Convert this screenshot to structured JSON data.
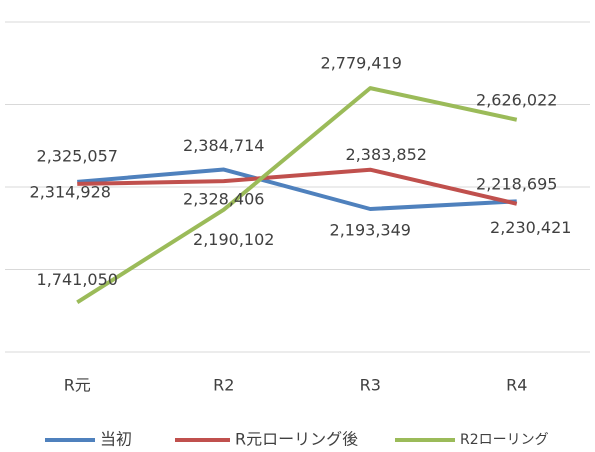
{
  "chart_data": {
    "type": "line",
    "categories": [
      "R元",
      "R2",
      "R3",
      "R4"
    ],
    "series": [
      {
        "name": "当初",
        "color": "#4f81bd",
        "values": [
          2325057,
          2384714,
          2193349,
          2230421
        ],
        "value_labels": [
          "2,325,057",
          "2,384,714",
          "2,193,349",
          "2,230,421"
        ]
      },
      {
        "name": "R元ローリング後",
        "color": "#c0504d",
        "values": [
          2314928,
          2328406,
          2383852,
          2218695
        ],
        "value_labels": [
          "2,314,928",
          "2,328,406",
          "2,383,852",
          "2,218,695"
        ]
      },
      {
        "name": "R2ローリング",
        "color": "#9bbb59",
        "values": [
          1741050,
          2190102,
          2779419,
          2626022
        ],
        "value_labels": [
          "1,741,050",
          "2,190,102",
          "2,779,419",
          "2,626,022"
        ]
      }
    ],
    "ylim": [
      1500000,
      3100000
    ],
    "yticks": [
      1500000,
      1900000,
      2300000,
      2700000,
      3100000
    ],
    "grid": true,
    "legend": "bottom"
  }
}
